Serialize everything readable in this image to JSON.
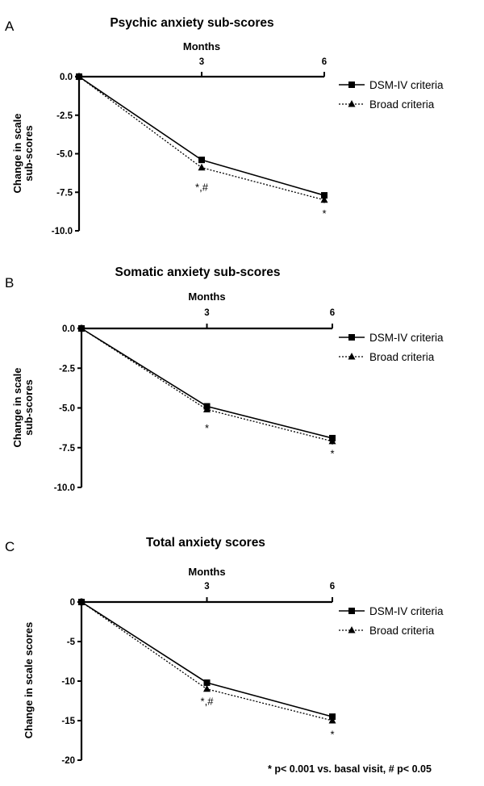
{
  "chart_data": [
    {
      "type": "line",
      "panel_letter": "A",
      "title": "Psychic anxiety sub-scores",
      "xlabel": "Months",
      "ylabel_lines": [
        "Change in scale",
        "sub-scores"
      ],
      "x": [
        0,
        3,
        6
      ],
      "x_tick_labels": [
        "3",
        "6"
      ],
      "xlim": [
        0,
        6
      ],
      "ylim": [
        -10,
        0
      ],
      "y_ticks": [
        0,
        -2.5,
        -5,
        -7.5,
        -10
      ],
      "y_tick_labels": [
        "0.0",
        "-2.5",
        "-5.0",
        "-7.5",
        "-10.0"
      ],
      "series": [
        {
          "name": "DSM-IV criteria",
          "marker": "square",
          "dash": "solid",
          "values": [
            0,
            -5.4,
            -7.7
          ],
          "errors": [
            0,
            0.15,
            0.2
          ]
        },
        {
          "name": "Broad criteria",
          "marker": "triangle",
          "dash": "dotted",
          "values": [
            0,
            -5.9,
            -8.0
          ],
          "errors": [
            0,
            0.15,
            0.2
          ]
        }
      ],
      "annotations": [
        {
          "x": 3,
          "y": -7.2,
          "text": "*,#"
        },
        {
          "x": 6,
          "y": -8.9,
          "text": "*"
        }
      ],
      "legend_position": "right"
    },
    {
      "type": "line",
      "panel_letter": "B",
      "title": "Somatic anxiety sub-scores",
      "xlabel": "Months",
      "ylabel_lines": [
        "Change in scale",
        "sub-scores"
      ],
      "x": [
        0,
        3,
        6
      ],
      "x_tick_labels": [
        "3",
        "6"
      ],
      "xlim": [
        0,
        6
      ],
      "ylim": [
        -10,
        0
      ],
      "y_ticks": [
        0,
        -2.5,
        -5,
        -7.5,
        -10
      ],
      "y_tick_labels": [
        "0.0",
        "-2.5",
        "-5.0",
        "-7.5",
        "-10.0"
      ],
      "series": [
        {
          "name": "DSM-IV criteria",
          "marker": "square",
          "dash": "solid",
          "values": [
            0,
            -4.9,
            -6.9
          ],
          "errors": [
            0,
            0.15,
            0.2
          ]
        },
        {
          "name": "Broad criteria",
          "marker": "triangle",
          "dash": "dotted",
          "values": [
            0,
            -5.1,
            -7.1
          ],
          "errors": [
            0,
            0.15,
            0.2
          ]
        }
      ],
      "annotations": [
        {
          "x": 3,
          "y": -6.3,
          "text": "*"
        },
        {
          "x": 6,
          "y": -7.9,
          "text": "*"
        }
      ],
      "legend_position": "right"
    },
    {
      "type": "line",
      "panel_letter": "C",
      "title": "Total anxiety scores",
      "xlabel": "Months",
      "ylabel_lines": [
        "Change in scale scores"
      ],
      "x": [
        0,
        3,
        6
      ],
      "x_tick_labels": [
        "3",
        "6"
      ],
      "xlim": [
        0,
        6
      ],
      "ylim": [
        -20,
        0
      ],
      "y_ticks": [
        0,
        -5,
        -10,
        -15,
        -20
      ],
      "y_tick_labels": [
        "0",
        "-5",
        "-10",
        "-15",
        "-20"
      ],
      "series": [
        {
          "name": "DSM-IV criteria",
          "marker": "square",
          "dash": "solid",
          "values": [
            0,
            -10.2,
            -14.5
          ],
          "errors": [
            0,
            0.3,
            0.35
          ]
        },
        {
          "name": "Broad criteria",
          "marker": "triangle",
          "dash": "dotted",
          "values": [
            0,
            -11.0,
            -15.0
          ],
          "errors": [
            0,
            0.3,
            0.35
          ]
        }
      ],
      "annotations": [
        {
          "x": 3,
          "y": -12.6,
          "text": "*,#"
        },
        {
          "x": 6,
          "y": -16.8,
          "text": "*"
        }
      ],
      "legend_position": "right"
    }
  ],
  "footnote": "* p< 0.001 vs. basal visit, # p< 0.05"
}
